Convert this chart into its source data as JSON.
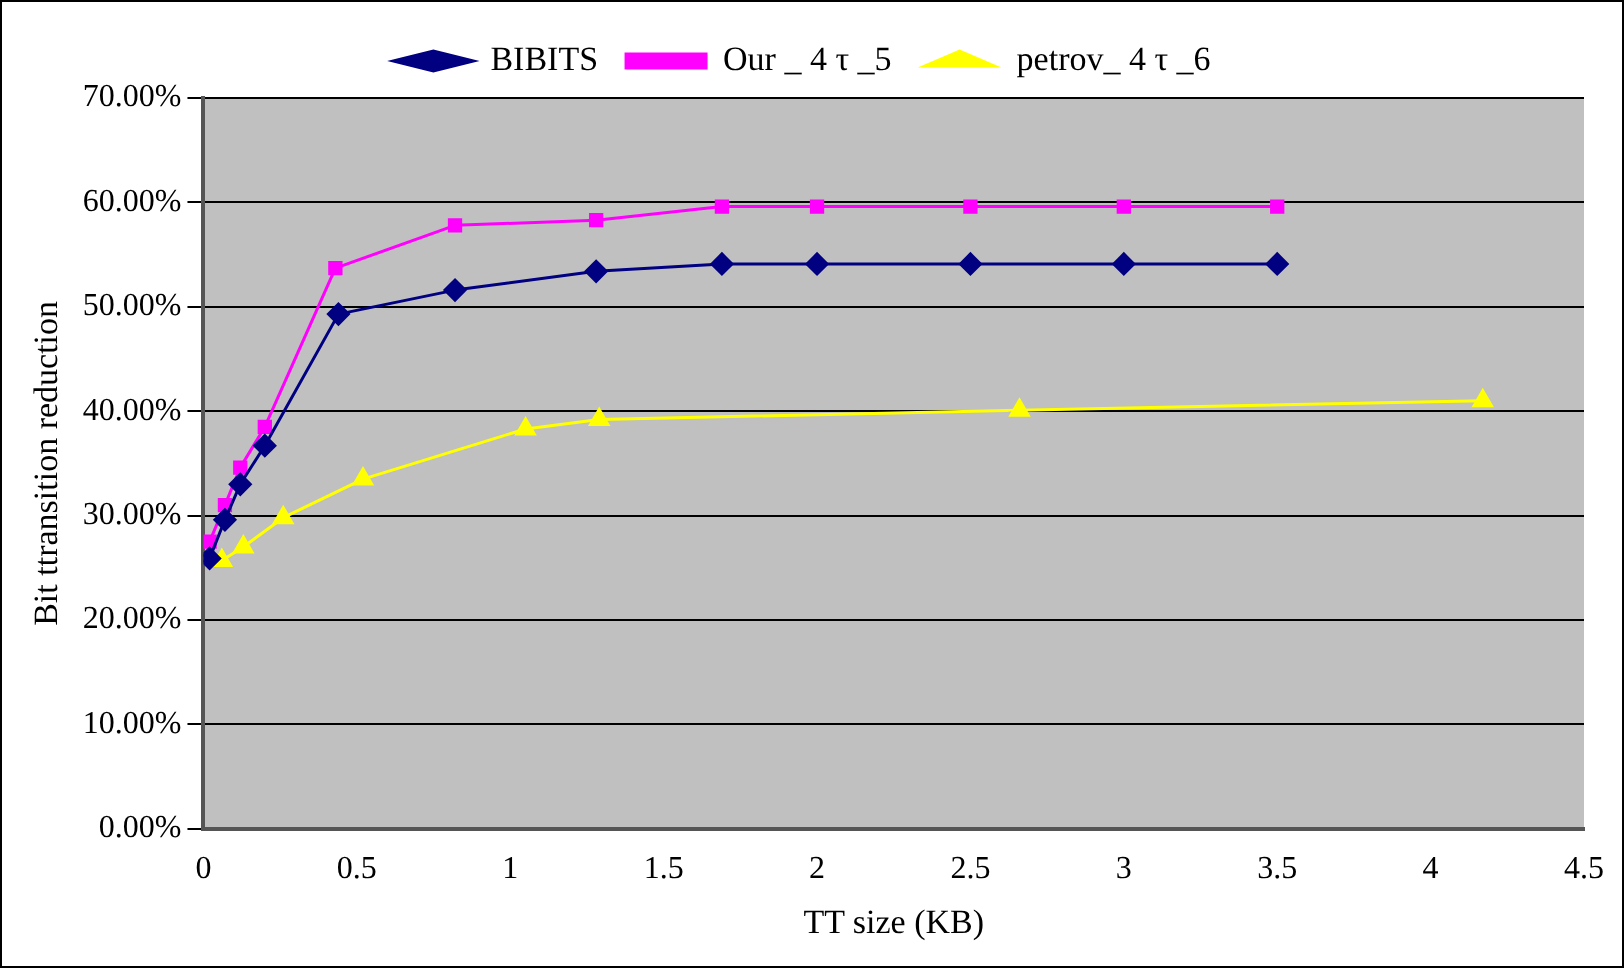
{
  "chart_data": {
    "type": "line",
    "xlabel": "TT size (KB)",
    "ylabel": "Bit ttransition reduction",
    "xlim": [
      0,
      4.5
    ],
    "xticks": [
      0,
      0.5,
      1,
      1.5,
      2,
      2.5,
      3,
      3.5,
      4,
      4.5
    ],
    "ylim": [
      0,
      70
    ],
    "yticks": [
      {
        "value": 0,
        "label": "0.00%"
      },
      {
        "value": 10,
        "label": "10.00%"
      },
      {
        "value": 20,
        "label": "20.00%"
      },
      {
        "value": 30,
        "label": "30.00%"
      },
      {
        "value": 40,
        "label": "40.00%"
      },
      {
        "value": 50,
        "label": "50.00%"
      },
      {
        "value": 60,
        "label": "60.00%"
      },
      {
        "value": 70,
        "label": "70.00%"
      }
    ],
    "grid": "y",
    "legend": "top",
    "series": [
      {
        "name": "BIBITS",
        "color": "#000080",
        "marker": "diamond",
        "x": [
          0.02,
          0.07,
          0.12,
          0.2,
          0.44,
          0.82,
          1.28,
          1.69,
          2.0,
          2.5,
          3.0,
          3.5
        ],
        "values": [
          25.9,
          29.6,
          33,
          36.7,
          49.3,
          51.6,
          53.4,
          54.1,
          54.1,
          54.1,
          54.1,
          54.1
        ]
      },
      {
        "name": "Our _ 4 τ _5",
        "color": "#ff00ff",
        "marker": "square",
        "x": [
          0.02,
          0.07,
          0.12,
          0.2,
          0.43,
          0.82,
          1.28,
          1.69,
          2.0,
          2.5,
          3.0,
          3.5
        ],
        "values": [
          27.5,
          31,
          34.6,
          38.5,
          53.7,
          57.8,
          58.3,
          59.6,
          59.6,
          59.6,
          59.6,
          59.6
        ]
      },
      {
        "name": "petrov_ 4 τ _6",
        "color": "#ffff00",
        "marker": "triangle",
        "x": [
          0.06,
          0.13,
          0.26,
          0.52,
          1.05,
          1.29,
          2.66,
          4.17
        ],
        "values": [
          25.7,
          27,
          29.8,
          33.5,
          38.3,
          39.2,
          40.1,
          41
        ]
      }
    ]
  }
}
